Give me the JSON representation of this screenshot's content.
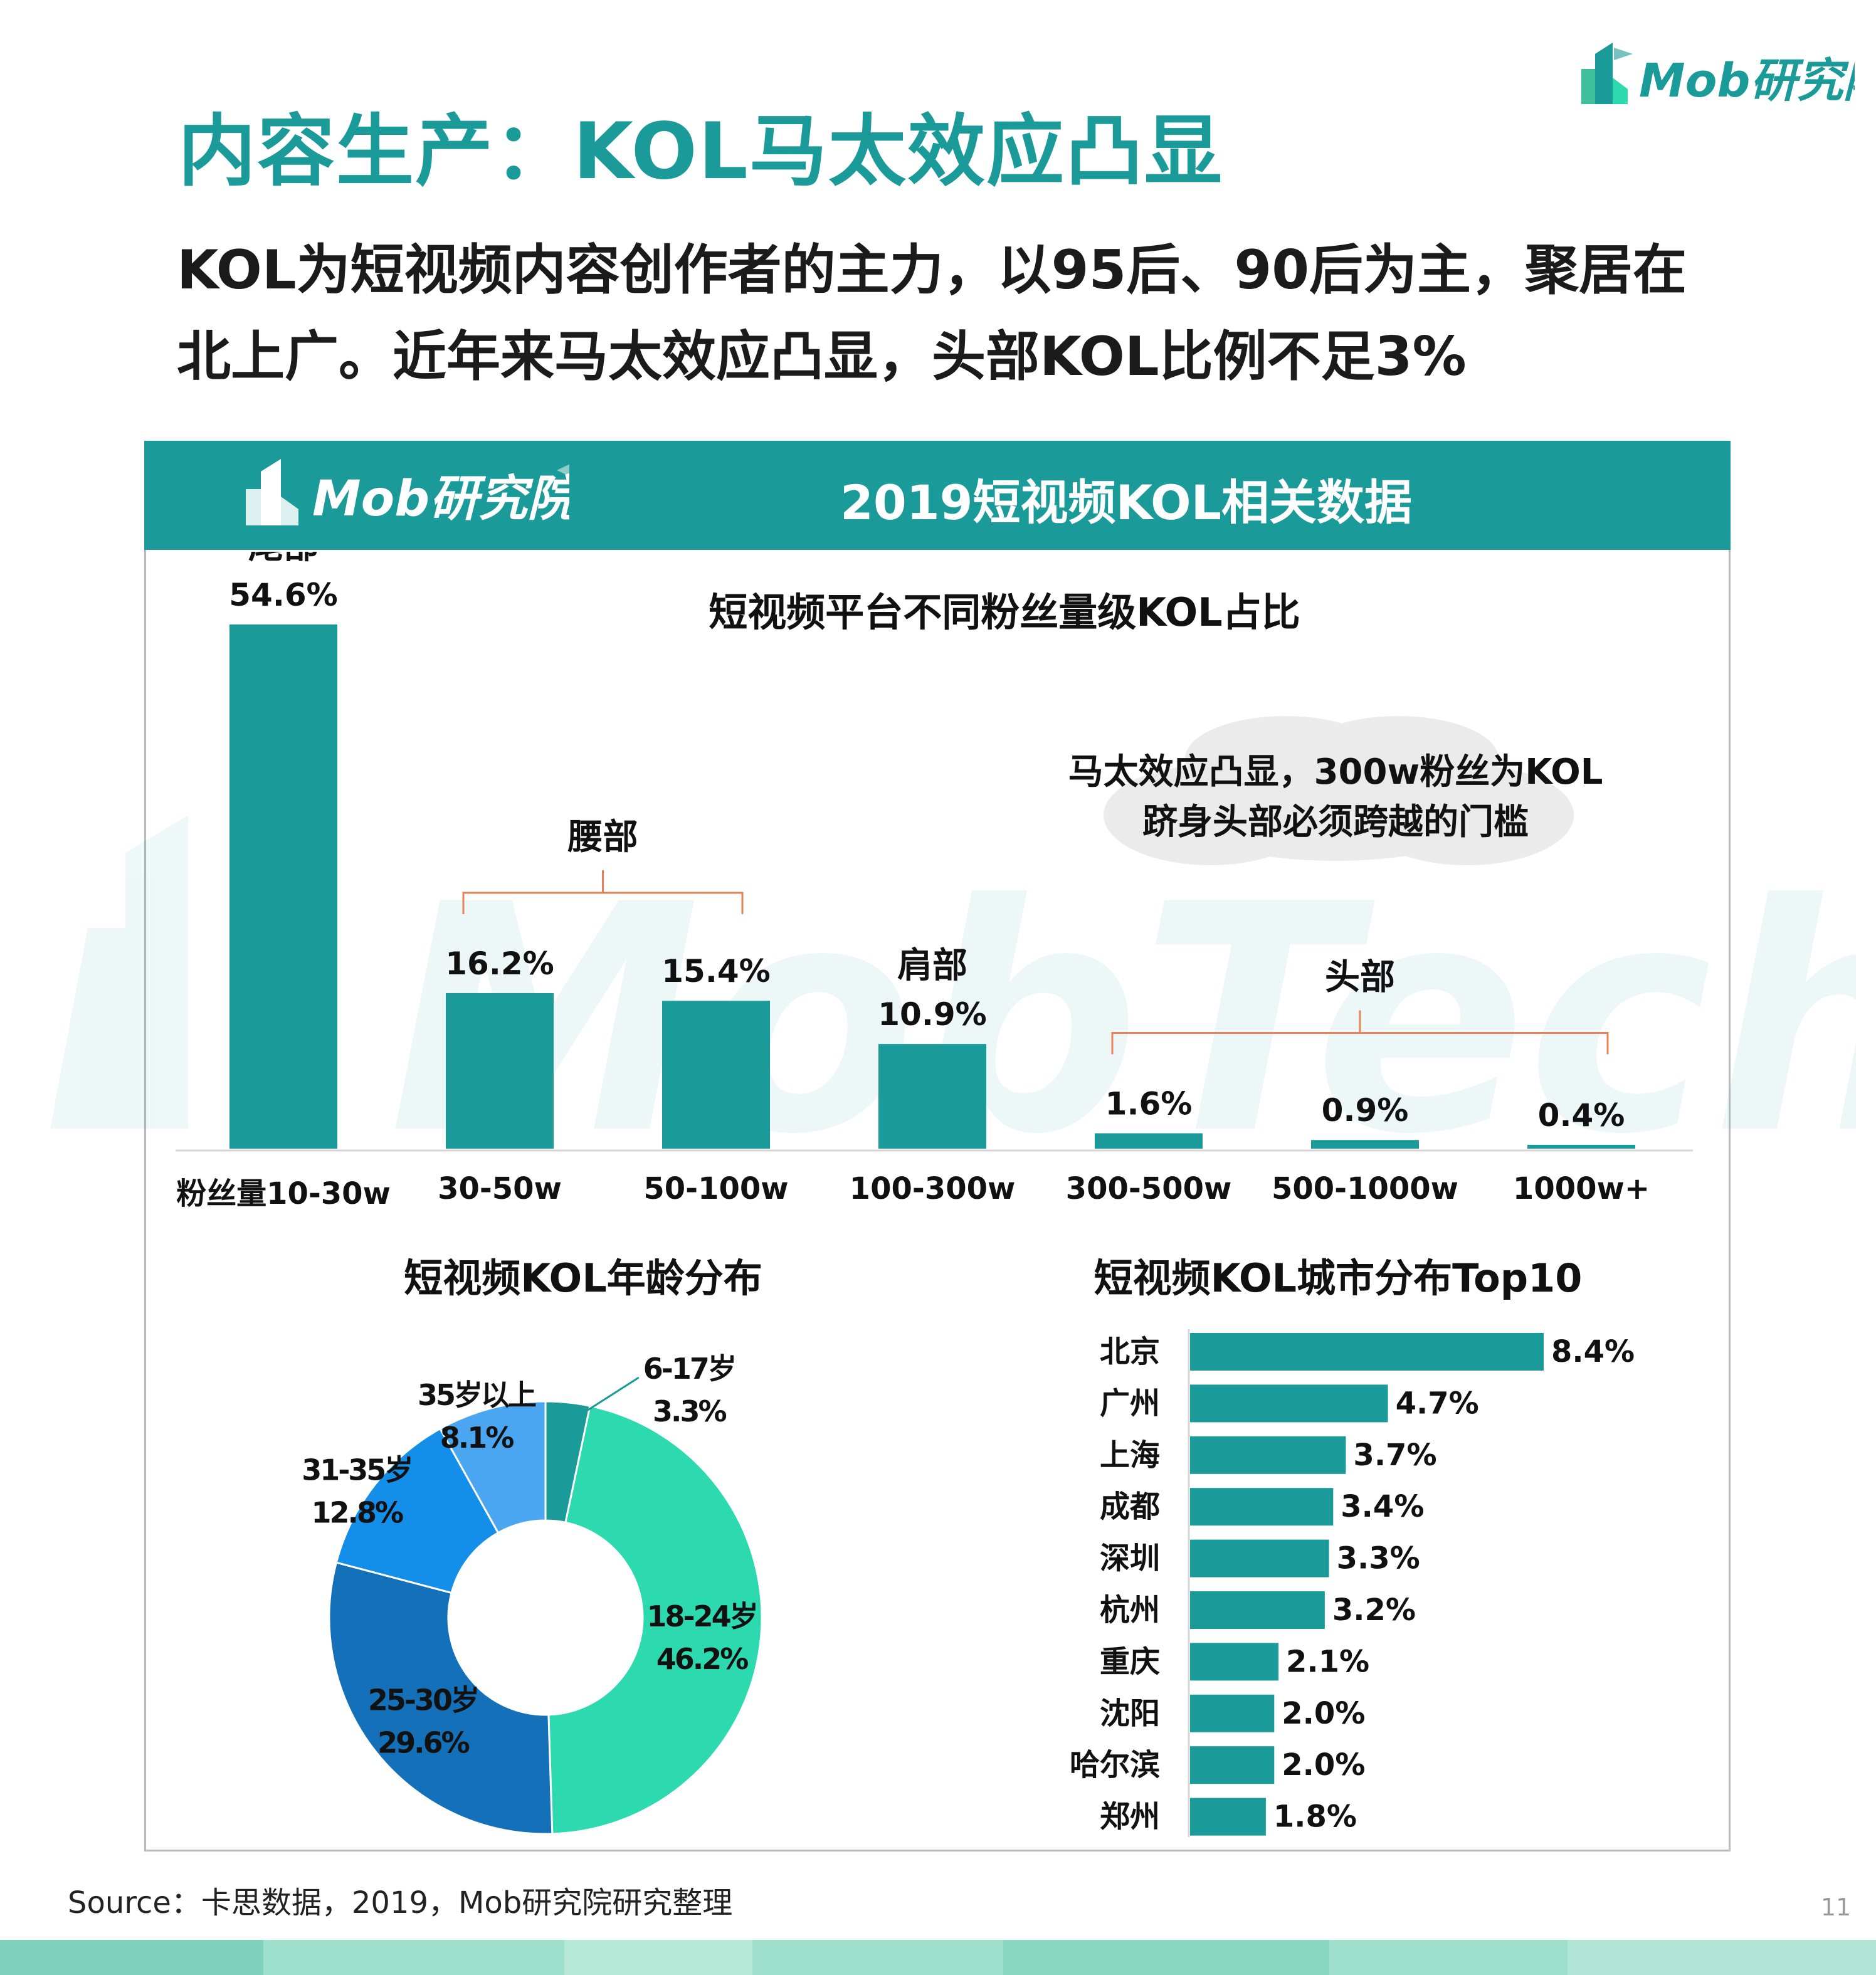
{
  "header": {
    "title": "内容生产：KOL马太效应凸显",
    "subtitle_lines": [
      "KOL为短视频内容创作者的主力，以95后、90后为主，聚居在",
      "北上广。近年来马太效应凸显，头部KOL比例不足3%"
    ],
    "logo_text": "Mob研究院"
  },
  "panel": {
    "title": "2019短视频KOL相关数据",
    "logo_text": "Mob研究院"
  },
  "watermark_text": "MobTech 袤博",
  "colors": {
    "teal": "#1a9a98",
    "bracket": "#e8825a",
    "cloud": "#ebebeb",
    "age_6_17": "#1a9a98",
    "age_18_24": "#2dd9ae",
    "age_25_30": "#1470b8",
    "age_31_35": "#138fea",
    "age_35_plus": "#4aa6f0"
  },
  "chart_data": [
    {
      "type": "bar",
      "title": "短视频平台不同粉丝量级KOL占比",
      "categories": [
        "粉丝量10-30w",
        "30-50w",
        "50-100w",
        "100-300w",
        "300-500w",
        "500-1000w",
        "1000w+"
      ],
      "values": [
        54.6,
        16.2,
        15.4,
        10.9,
        1.6,
        0.9,
        0.4
      ],
      "value_labels": [
        "54.6%",
        "16.2%",
        "15.4%",
        "10.9%",
        "1.6%",
        "0.9%",
        "0.4%"
      ],
      "unit": "%",
      "ylim": [
        0,
        54.6
      ],
      "grid": false,
      "groups": [
        {
          "label": "尾部",
          "categories": [
            "粉丝量10-30w"
          ]
        },
        {
          "label": "腰部",
          "categories": [
            "30-50w",
            "50-100w"
          ]
        },
        {
          "label": "肩部",
          "categories": [
            "100-300w"
          ]
        },
        {
          "label": "头部",
          "categories": [
            "300-500w",
            "500-1000w",
            "1000w+"
          ]
        }
      ],
      "annotation": {
        "lines": [
          "马太效应凸显，300w粉丝为KOL",
          "跻身头部必须跨越的门槛"
        ]
      }
    },
    {
      "type": "pie",
      "title": "短视频KOL年龄分布",
      "slices": [
        {
          "label": "6-17岁",
          "value": 3.3,
          "value_label": "3.3%",
          "color": "#1a9a98"
        },
        {
          "label": "18-24岁",
          "value": 46.2,
          "value_label": "46.2%",
          "color": "#2dd9ae"
        },
        {
          "label": "25-30岁",
          "value": 29.6,
          "value_label": "29.6%",
          "color": "#1470b8"
        },
        {
          "label": "31-35岁",
          "value": 12.8,
          "value_label": "12.8%",
          "color": "#138fea"
        },
        {
          "label": "35岁以上",
          "value": 8.1,
          "value_label": "8.1%",
          "color": "#4aa6f0"
        }
      ]
    },
    {
      "type": "bar",
      "orientation": "horizontal",
      "title": "短视频KOL城市分布Top10",
      "categories": [
        "北京",
        "广州",
        "上海",
        "成都",
        "深圳",
        "杭州",
        "重庆",
        "沈阳",
        "哈尔滨",
        "郑州"
      ],
      "values": [
        8.4,
        4.7,
        3.7,
        3.4,
        3.3,
        3.2,
        2.1,
        2.0,
        2.0,
        1.8
      ],
      "value_labels": [
        "8.4%",
        "4.7%",
        "3.7%",
        "3.4%",
        "3.3%",
        "3.2%",
        "2.1%",
        "2.0%",
        "2.0%",
        "1.8%"
      ],
      "unit": "%",
      "xlim": [
        0,
        8.4
      ]
    }
  ],
  "footer": {
    "source": "Source：卡思数据，2019，Mob研究院研究整理",
    "page_number": "11"
  }
}
